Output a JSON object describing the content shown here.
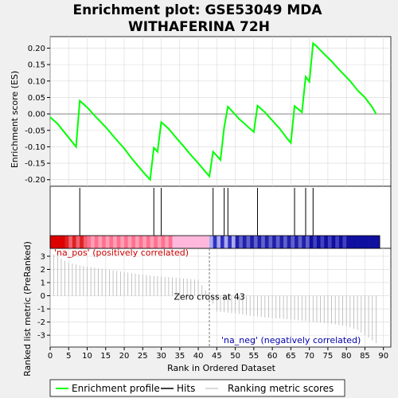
{
  "chart_data": {
    "type": "line",
    "title_line1": "Enrichment plot: GSE53049 MDA",
    "title_line2": "WITHAFERINA 72H",
    "xlabel": "Rank in Ordered Dataset",
    "ylabel_es": "Enrichment score (ES)",
    "ylabel_metric": "Ranked list metric (PreRanked)",
    "xlim": [
      0,
      92
    ],
    "es_ylim": [
      -0.22,
      0.235
    ],
    "metric_ylim": [
      -3.9,
      3.6
    ],
    "x_ticks": [
      0,
      5,
      10,
      15,
      20,
      25,
      30,
      35,
      40,
      45,
      50,
      55,
      60,
      65,
      70,
      75,
      80,
      85,
      90
    ],
    "es_ticks": [
      "0.20",
      "0.15",
      "0.10",
      "0.05",
      "0.00",
      "-0.05",
      "-0.10",
      "-0.15",
      "-0.20"
    ],
    "es_tick_values": [
      0.2,
      0.15,
      0.1,
      0.05,
      0.0,
      -0.05,
      -0.1,
      -0.15,
      -0.2
    ],
    "metric_ticks": [
      3,
      2,
      1,
      0,
      -1,
      -2,
      -3
    ],
    "es_profile": {
      "x": [
        0,
        2,
        4,
        7,
        8,
        10,
        12,
        15,
        18,
        20,
        22,
        25,
        27,
        28,
        29,
        30,
        32,
        34,
        36,
        38,
        40,
        43,
        44,
        46,
        47,
        48,
        49,
        51,
        53,
        55,
        56,
        58,
        60,
        62,
        64,
        65,
        66,
        68,
        69,
        70,
        71,
        72,
        74,
        76,
        78,
        81,
        83,
        85,
        87,
        88
      ],
      "y": [
        -0.01,
        -0.03,
        -0.058,
        -0.1,
        0.04,
        0.02,
        -0.005,
        -0.04,
        -0.08,
        -0.105,
        -0.135,
        -0.175,
        -0.2,
        -0.103,
        -0.115,
        -0.025,
        -0.045,
        -0.072,
        -0.098,
        -0.125,
        -0.15,
        -0.19,
        -0.115,
        -0.14,
        -0.04,
        0.022,
        0.01,
        -0.015,
        -0.035,
        -0.055,
        0.025,
        0.005,
        -0.02,
        -0.045,
        -0.075,
        -0.088,
        0.024,
        0.005,
        0.113,
        0.098,
        0.215,
        0.205,
        0.182,
        0.16,
        0.135,
        0.1,
        0.072,
        0.05,
        0.02,
        0.0
      ]
    },
    "hits": [
      8,
      28,
      30,
      44,
      47,
      48,
      56,
      66,
      69,
      71
    ],
    "zero_cross": 43,
    "zero_cross_label": "Zero cross at 43",
    "pos_label": "'na_pos' (positively correlated)",
    "neg_label": "'na_neg' (negatively correlated)",
    "metric_curve": {
      "x": [
        0,
        5,
        10,
        15,
        20,
        25,
        30,
        35,
        40,
        43,
        45,
        50,
        55,
        60,
        65,
        70,
        75,
        80,
        83,
        85,
        87,
        88
      ],
      "y": [
        3.3,
        2.5,
        2.2,
        2.0,
        1.8,
        1.6,
        1.45,
        1.35,
        1.2,
        0.0,
        -1.2,
        -1.35,
        -1.55,
        -1.7,
        -1.8,
        -1.95,
        -2.1,
        -2.3,
        -2.6,
        -3.0,
        -3.4,
        -3.6
      ]
    },
    "legend": [
      "Enrichment profile",
      "Hits",
      "Ranking metric scores"
    ],
    "colors": {
      "profile": "#00ff00",
      "hits": "#000000",
      "metric": "#b4b4b4",
      "pos_text": "#cc0000",
      "neg_text": "#0000aa",
      "zero_line": "#777777",
      "grid": "#d8d8d8"
    }
  }
}
